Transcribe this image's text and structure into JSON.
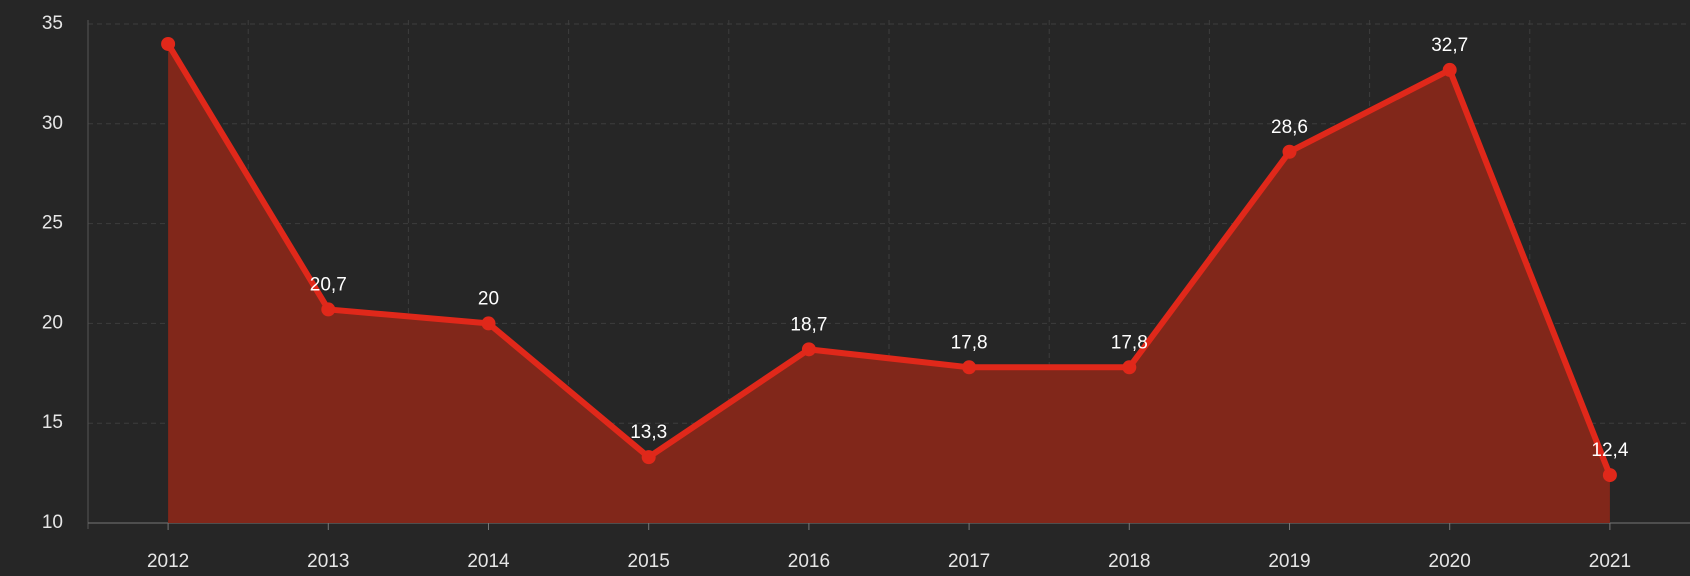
{
  "chart_data": {
    "type": "area",
    "categories": [
      "2012",
      "2013",
      "2014",
      "2015",
      "2016",
      "2017",
      "2018",
      "2019",
      "2020",
      "2021"
    ],
    "series": [
      {
        "color": "#e0281a",
        "fill": "#81271a",
        "values": [
          34,
          20.7,
          20,
          13.3,
          18.7,
          17.8,
          17.8,
          28.6,
          32.7,
          12.4
        ],
        "value_labels": [
          null,
          "20,7",
          "20",
          "13,3",
          "18,7",
          "17,8",
          "17,8",
          "28,6",
          "32,7",
          "12,4"
        ]
      }
    ],
    "ylim": [
      10,
      35
    ],
    "yticks": [
      10,
      15,
      20,
      25,
      30,
      35
    ],
    "grid": true
  }
}
